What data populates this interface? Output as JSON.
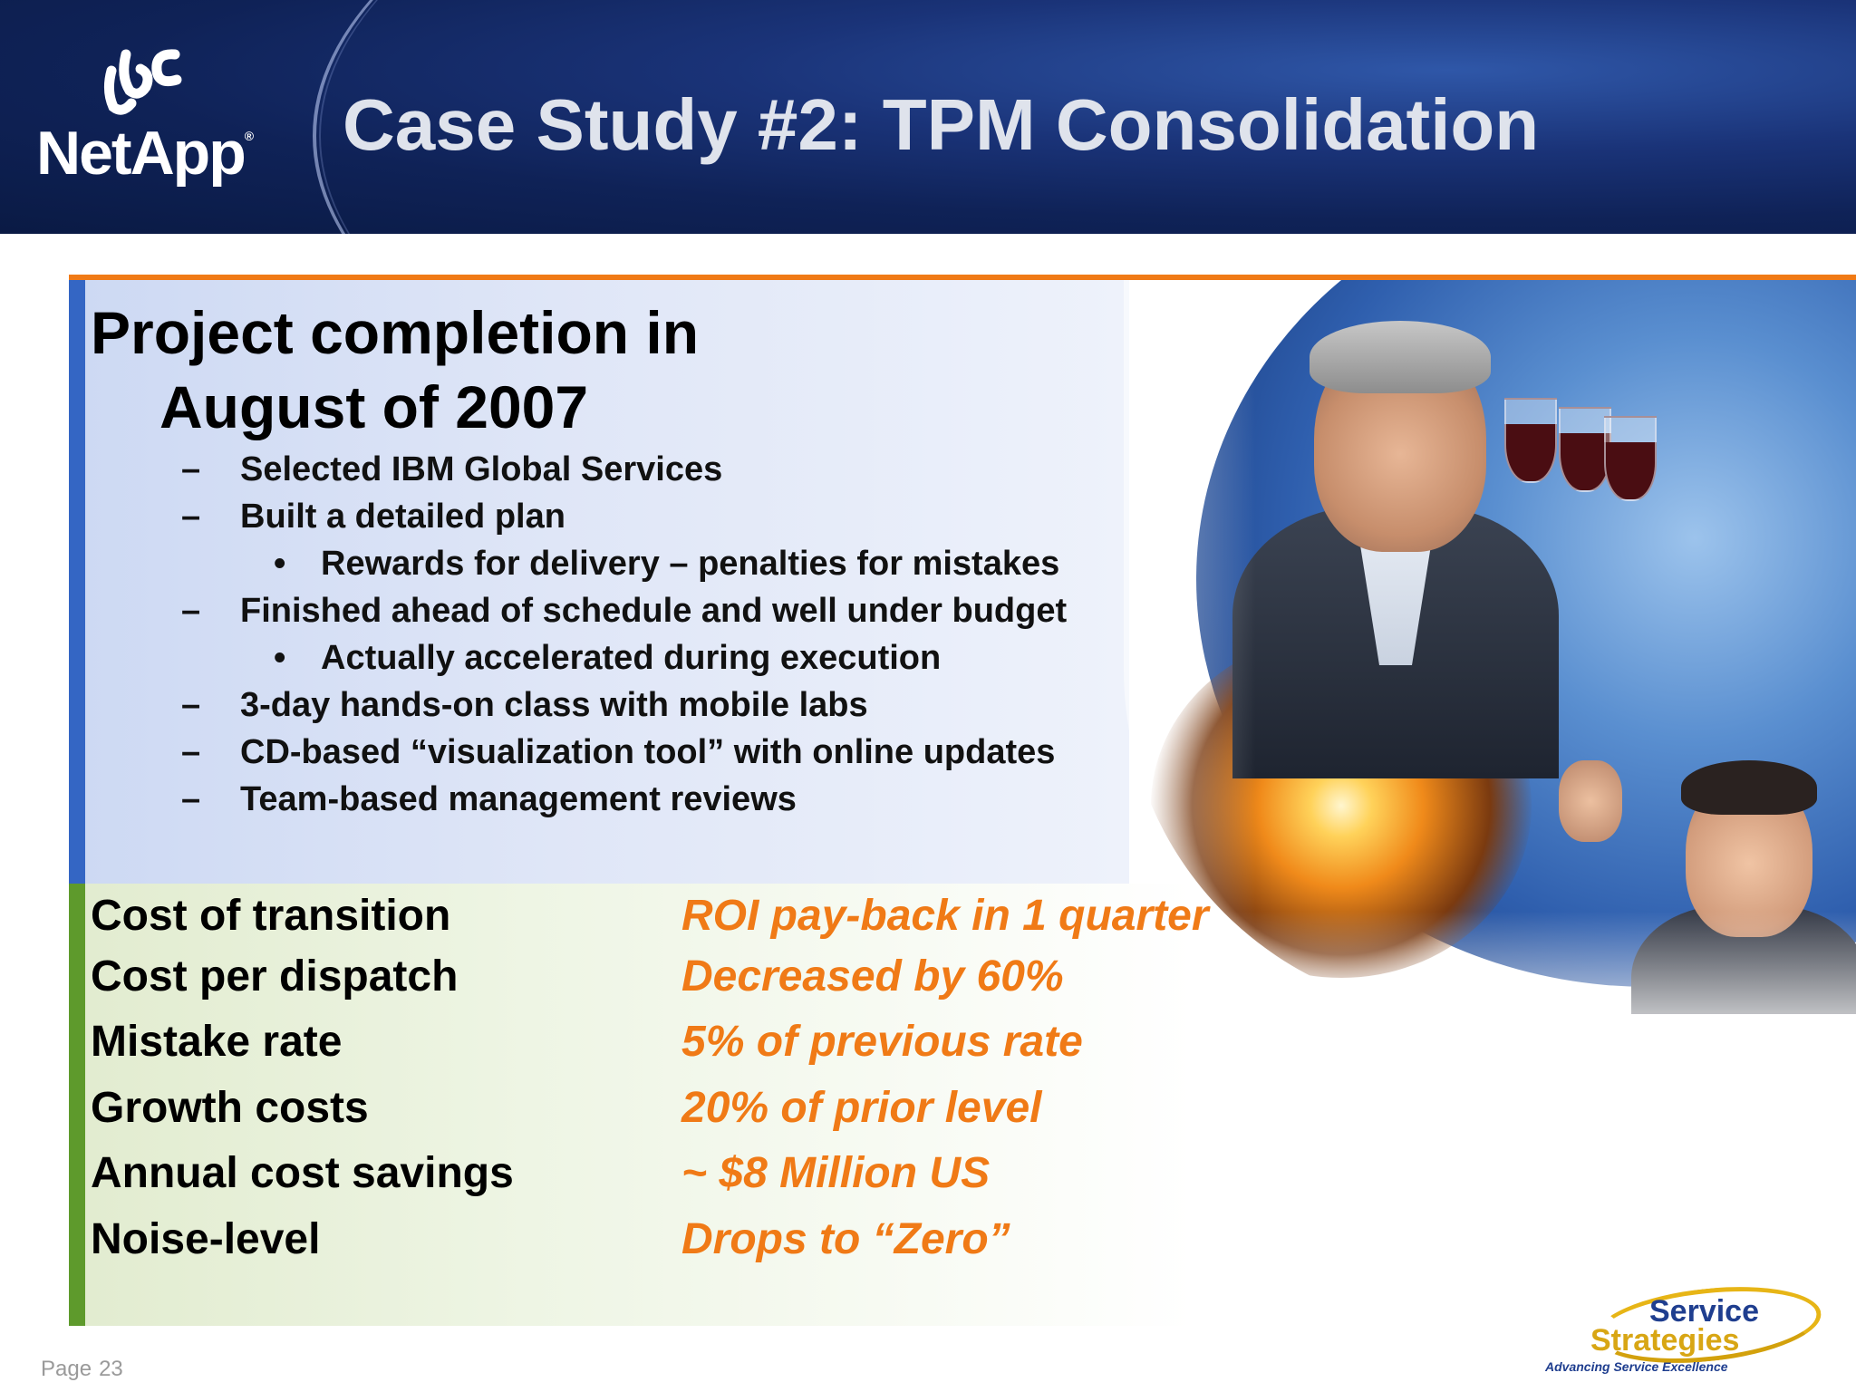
{
  "header": {
    "logo_name": "NetApp",
    "logo_reg": "®",
    "title": "Case Study #2:  TPM Consolidation"
  },
  "project": {
    "heading_line1": "Project completion in",
    "heading_line2": "August of 2007",
    "bullets": [
      {
        "marker": "–",
        "text": "Selected IBM Global Services",
        "level": 1
      },
      {
        "marker": "–",
        "text": "Built a detailed plan",
        "level": 1
      },
      {
        "marker": "•",
        "text": "Rewards for delivery – penalties for mistakes",
        "level": 2
      },
      {
        "marker": "–",
        "text": "Finished ahead of schedule and well under budget",
        "level": 1
      },
      {
        "marker": "•",
        "text": "Actually accelerated during execution",
        "level": 2
      },
      {
        "marker": "–",
        "text": "3-day hands-on class with mobile labs",
        "level": 1
      },
      {
        "marker": "–",
        "text": "CD-based “visualization tool” with online updates",
        "level": 1
      },
      {
        "marker": "–",
        "text": "Team-based management reviews",
        "level": 1
      }
    ]
  },
  "metrics": [
    {
      "label": "Cost of transition",
      "value": "ROI pay-back in 1 quarter"
    },
    {
      "label": "Cost per dispatch",
      "value": "Decreased by 60%"
    },
    {
      "label": "Mistake rate",
      "value": "5% of previous rate"
    },
    {
      "label": "Growth costs",
      "value": "20% of prior level"
    },
    {
      "label": "Annual cost savings",
      "value": "~ $8 Million US"
    },
    {
      "label": "Noise-level",
      "value": "Drops to “Zero”"
    }
  ],
  "footer": {
    "page_label": "Page",
    "page_number": "23",
    "partner_logo": {
      "line1": "Service",
      "line2": "Strategies",
      "tagline": "Advancing Service Excellence"
    }
  },
  "colors": {
    "accent_orange": "#f07a16",
    "header_blue": "#0f2257",
    "upper_bar_blue": "#3466c4",
    "lower_bar_green": "#5e9a2c"
  },
  "icons": [
    "netapp-logo-icon",
    "service-strategies-logo-icon"
  ]
}
